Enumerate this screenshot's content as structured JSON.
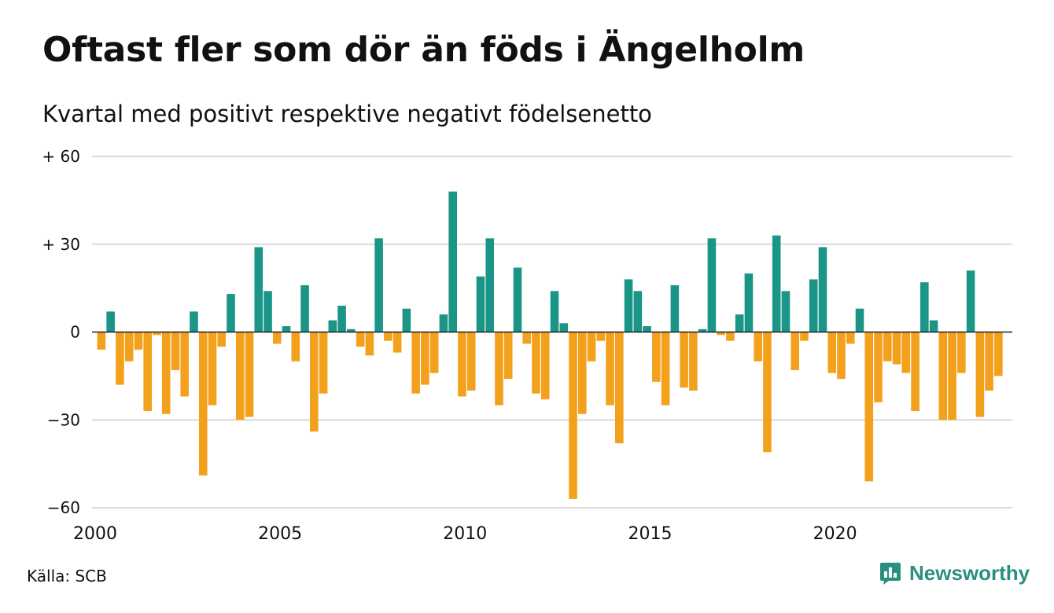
{
  "title": "Oftast fler som dör än föds i Ängelholm",
  "subtitle": "Kvartal med positivt respektive negativt födelsenetto",
  "source": "Källa: SCB",
  "brand": {
    "name": "Newsworthy",
    "icon": "bar-chart-logo-icon"
  },
  "colors": {
    "positive": "#1a9587",
    "negative": "#f3a11c",
    "grid": "#d9d9d9",
    "axis": "#222222",
    "brand": "#2a8f7e"
  },
  "chart_data": {
    "type": "bar",
    "x_start": 2000,
    "x_step": 0.25,
    "xlim": [
      2000,
      2024.75
    ],
    "ylim": [
      -60,
      60
    ],
    "grid": true,
    "ytick_values": [
      60,
      30,
      0,
      -30,
      -60
    ],
    "ytick_labels": [
      "+ 60",
      "+ 30",
      "0",
      "−30",
      "−60"
    ],
    "xticks": [
      2000,
      2005,
      2010,
      2015,
      2020
    ],
    "xtick_labels": [
      "2000",
      "2005",
      "2010",
      "2015",
      "2020"
    ],
    "values": [
      -6,
      7,
      -18,
      -10,
      -6,
      -27,
      -1,
      -28,
      -13,
      -22,
      7,
      -49,
      -25,
      -5,
      13,
      -30,
      -29,
      29,
      14,
      -4,
      2,
      -10,
      16,
      -34,
      -21,
      4,
      9,
      1,
      -5,
      -8,
      32,
      -3,
      -7,
      8,
      -21,
      -18,
      -14,
      6,
      48,
      -22,
      -20,
      19,
      32,
      -25,
      -16,
      22,
      -4,
      -21,
      -23,
      14,
      3,
      -57,
      -28,
      -10,
      -3,
      -25,
      -38,
      18,
      14,
      2,
      -17,
      -25,
      16,
      -19,
      -20,
      1,
      32,
      -1,
      -3,
      6,
      20,
      -10,
      -41,
      33,
      14,
      -13,
      -3,
      18,
      29,
      -14,
      -16,
      -4,
      8,
      -51,
      -24,
      -10,
      -11,
      -14,
      -27,
      17,
      4,
      -30,
      -30,
      -14,
      21,
      -29,
      -20,
      -15
    ]
  }
}
